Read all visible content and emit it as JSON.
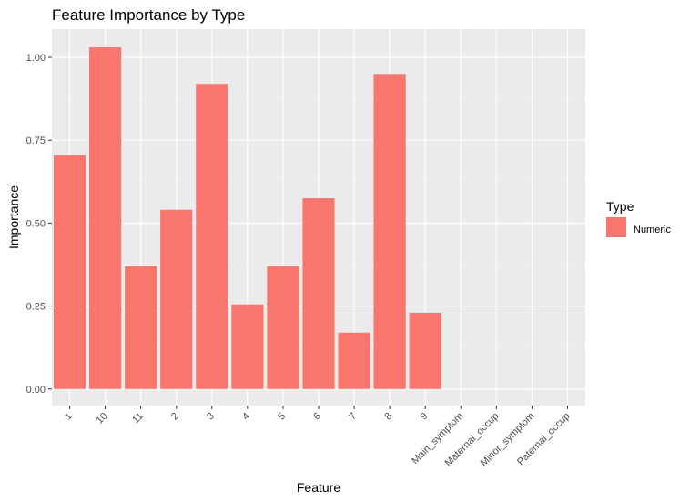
{
  "chart_data": {
    "type": "bar",
    "title": "Feature Importance by Type",
    "xlabel": "Feature",
    "ylabel": "Importance",
    "categories": [
      "1",
      "10",
      "11",
      "2",
      "3",
      "4",
      "5",
      "6",
      "7",
      "8",
      "9",
      "Main_symptom",
      "Maternal_occup",
      "Minor_symptom",
      "Paternal_occup"
    ],
    "series": [
      {
        "name": "Numeric",
        "color": "#F8766D",
        "values": [
          0.705,
          1.03,
          0.37,
          0.54,
          0.92,
          0.255,
          0.37,
          0.575,
          0.17,
          0.95,
          0.23,
          null,
          null,
          null,
          null
        ]
      }
    ],
    "ylim": [
      -0.05,
      1.085
    ],
    "yticks": [
      0.0,
      0.25,
      0.5,
      0.75,
      1.0
    ],
    "ytick_labels": [
      "0.00",
      "0.25",
      "0.50",
      "0.75",
      "1.00"
    ],
    "grid": true,
    "legend": {
      "title": "Type",
      "position": "right"
    },
    "colors": {
      "panel": "#EBEBEB",
      "grid_major": "#FFFFFF",
      "grid_minor": "#F5F5F5",
      "bar": "#F8766D"
    }
  }
}
